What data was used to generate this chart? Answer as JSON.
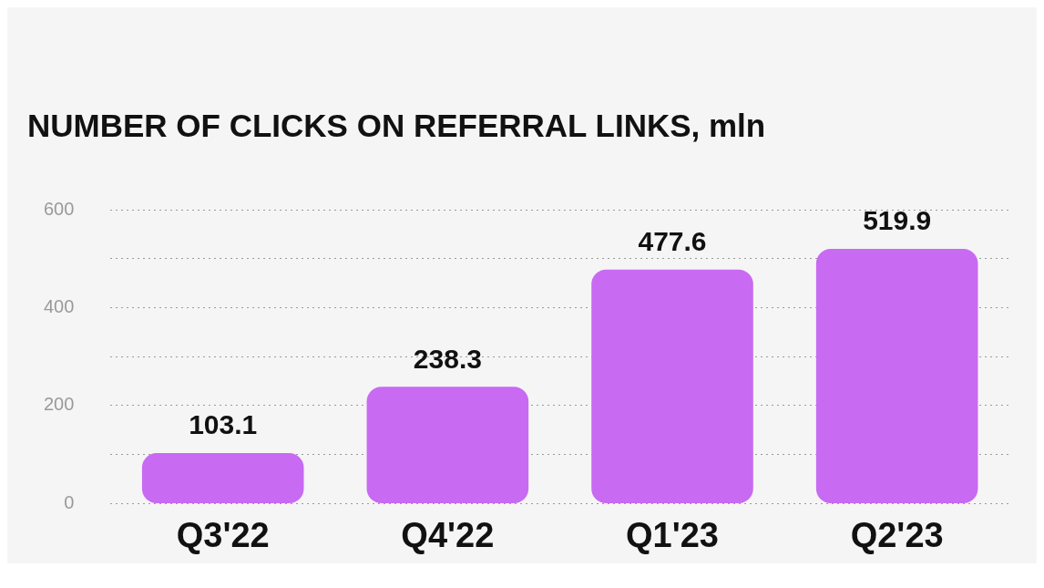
{
  "chart_data": {
    "type": "bar",
    "title": "NUMBER OF CLICKS ON REFERRAL LINKS, mln",
    "categories": [
      "Q3'22",
      "Q4'22",
      "Q1'23",
      "Q2'23"
    ],
    "values": [
      103.1,
      238.3,
      477.6,
      519.9
    ],
    "color": "#c86af2",
    "ylim": [
      0,
      600
    ],
    "yticks": [
      0,
      {
        "value": 100,
        "label": null
      },
      200,
      {
        "value": 300,
        "label": null
      },
      400,
      {
        "value": 500,
        "label": null
      },
      600
    ],
    "grid": "y",
    "data_labels": true,
    "legend": false
  }
}
